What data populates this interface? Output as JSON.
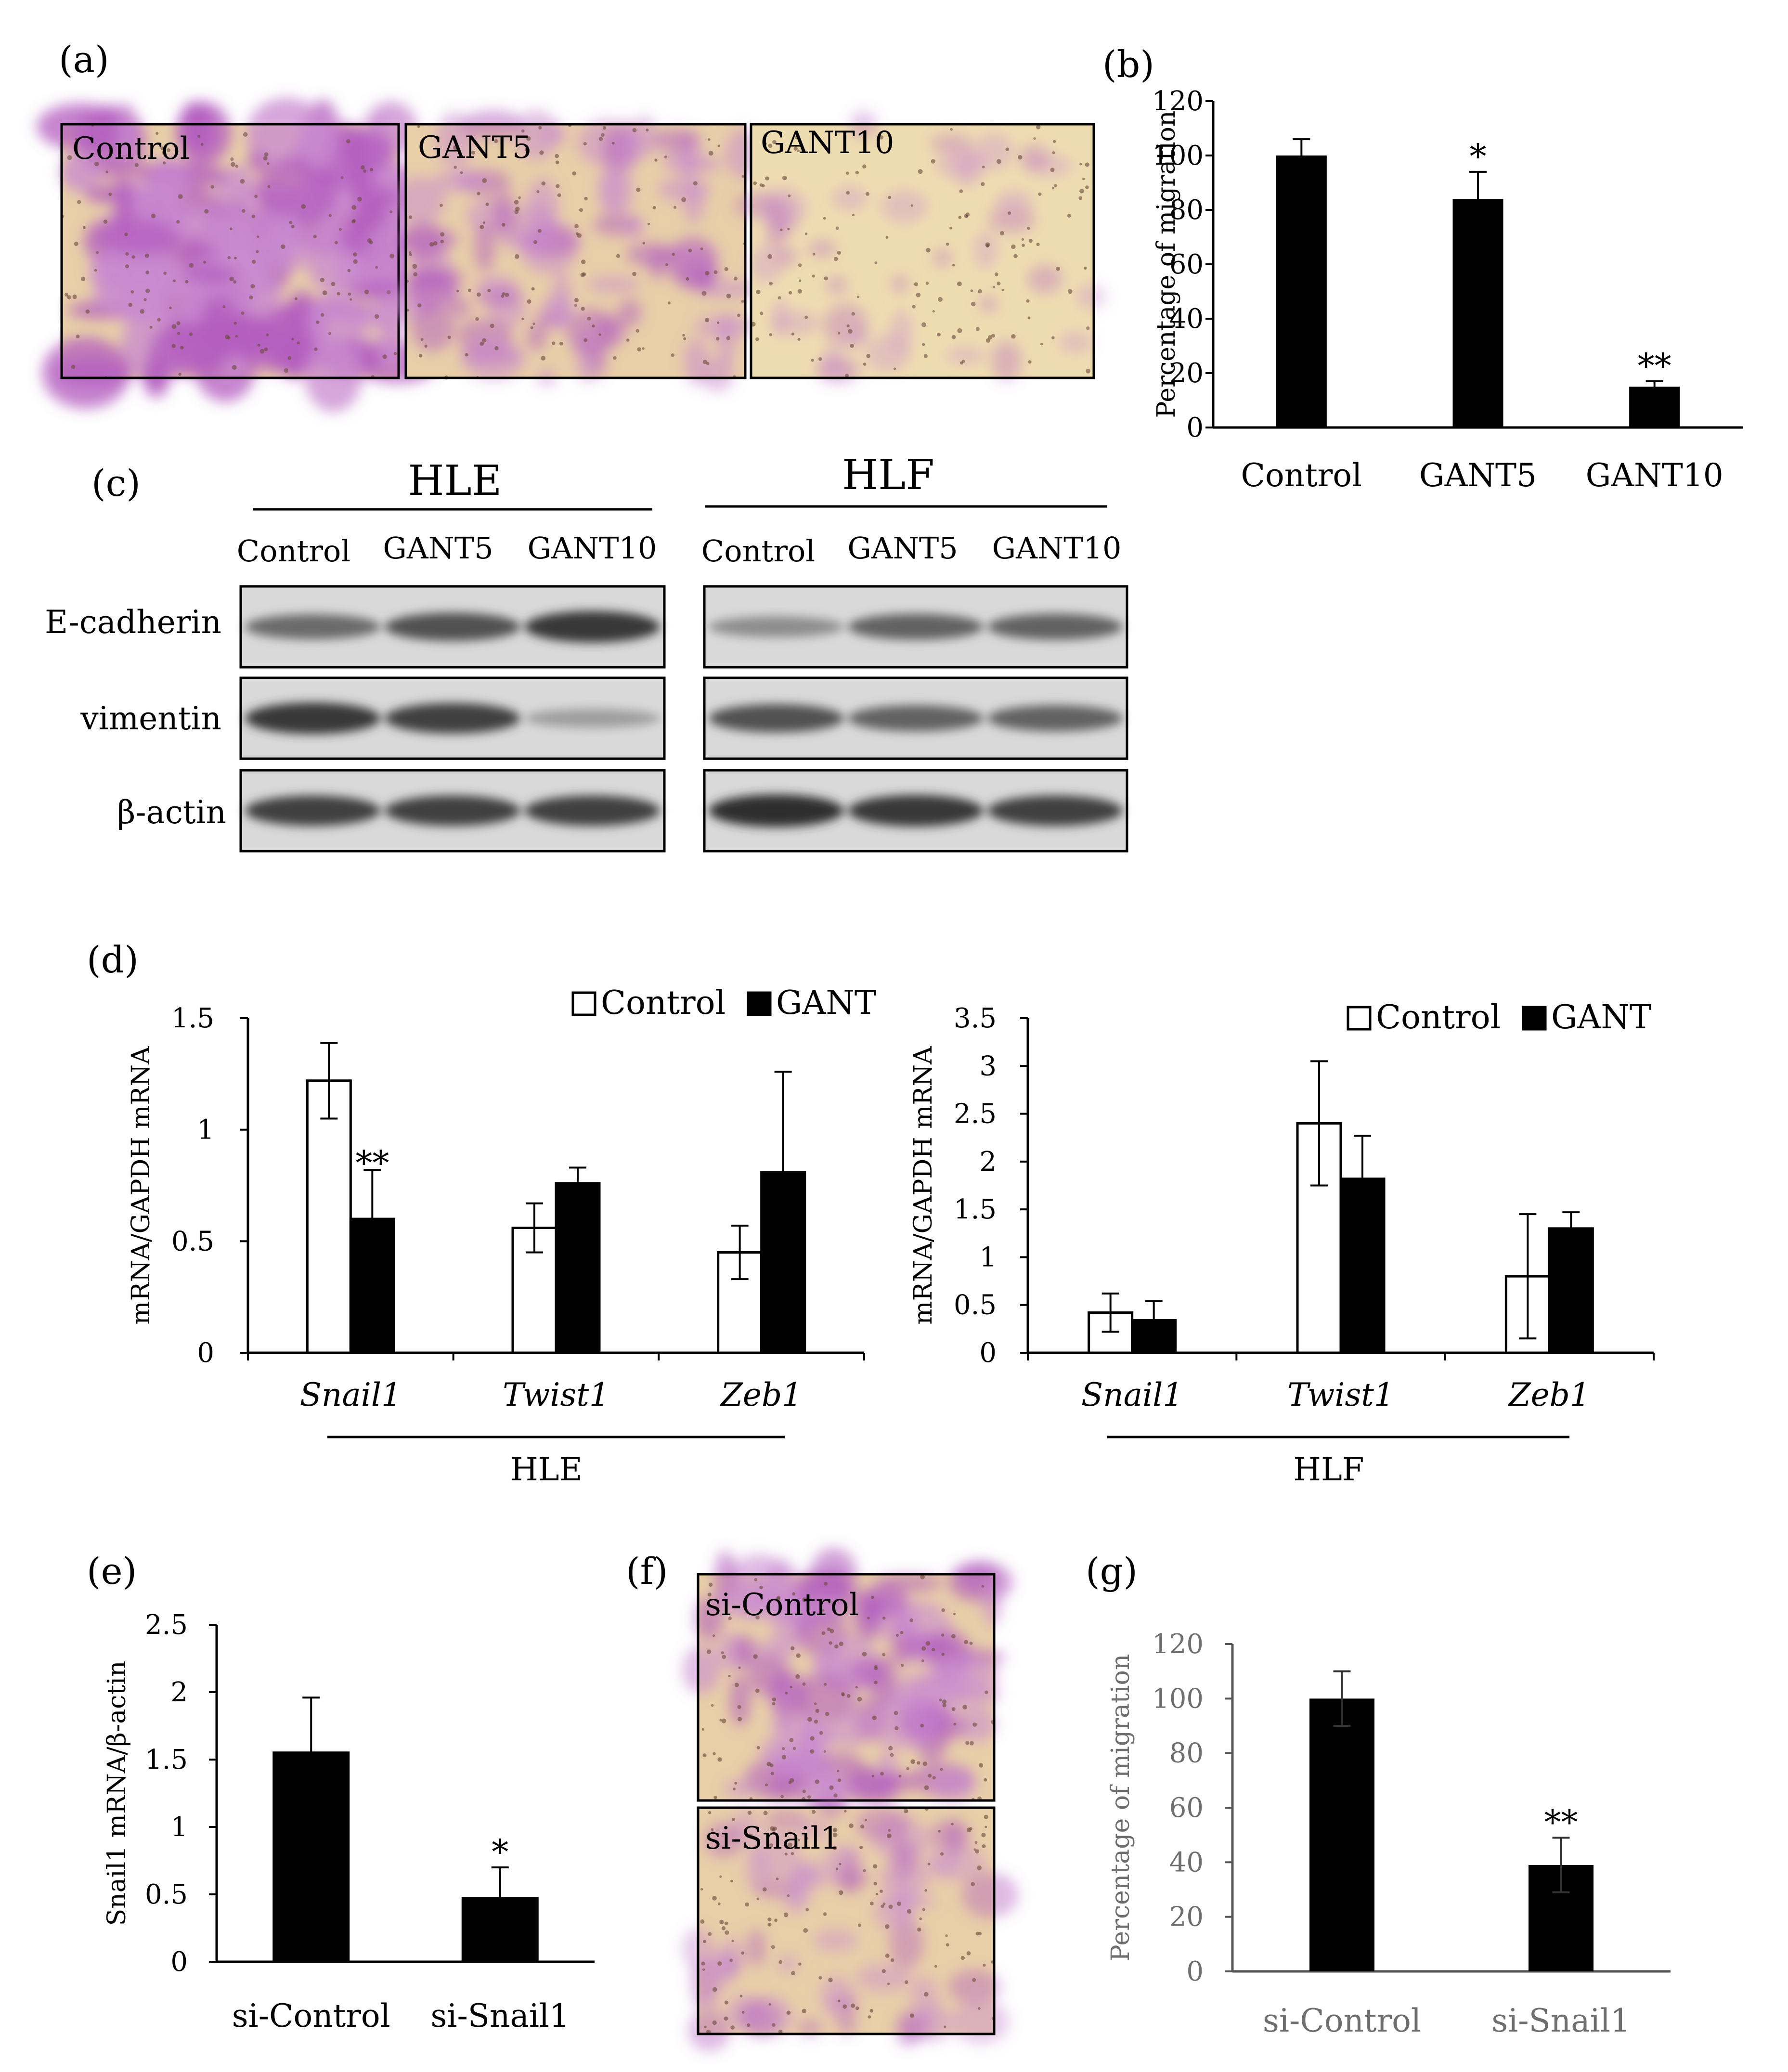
{
  "panel_labels": {
    "a": "(a)",
    "b": "(b)",
    "c": "(c)",
    "d": "(d)",
    "e": "(e)",
    "f": "(f)",
    "g": "(g)"
  },
  "micrographs": {
    "a": [
      {
        "label": "Control",
        "stain_density": 0.85
      },
      {
        "label": "GANT5",
        "stain_density": 0.45
      },
      {
        "label": "GANT10",
        "stain_density": 0.15
      }
    ],
    "f": [
      {
        "label": "si-Control",
        "stain_density": 0.55
      },
      {
        "label": "si-Snail1",
        "stain_density": 0.3
      }
    ]
  },
  "western_blot": {
    "groups": [
      "HLE",
      "HLF"
    ],
    "lanes": [
      "Control",
      "GANT5",
      "GANT10"
    ],
    "rows": [
      "E-cadherin",
      "vimentin",
      "β-actin"
    ],
    "intensity": {
      "HLE": [
        [
          0.55,
          0.7,
          0.85
        ],
        [
          0.85,
          0.8,
          0.25
        ],
        [
          0.8,
          0.8,
          0.8
        ]
      ],
      "HLF": [
        [
          0.35,
          0.6,
          0.6
        ],
        [
          0.7,
          0.6,
          0.6
        ],
        [
          0.9,
          0.85,
          0.8
        ]
      ]
    }
  },
  "chart_data": [
    {
      "id": "b",
      "type": "bar",
      "categories": [
        "Control",
        "GANT5",
        "GANT10"
      ],
      "values": [
        100,
        84,
        15
      ],
      "errors": [
        6,
        10,
        2
      ],
      "annotations": [
        "",
        "*",
        "**"
      ],
      "ylabel": "Percentage of migration",
      "ylim": [
        0,
        120
      ],
      "yticks": [
        "0",
        "20",
        "40",
        "60",
        "80",
        "100",
        "120"
      ],
      "grid": false,
      "bar_color": "#000000"
    },
    {
      "id": "d-HLE",
      "type": "bar",
      "categories": [
        "Snail1",
        "Twist1",
        "Zeb1"
      ],
      "group_label": "HLE",
      "series": [
        {
          "name": "Control",
          "values": [
            1.22,
            0.56,
            0.45
          ],
          "errors": [
            0.17,
            0.11,
            0.12
          ],
          "color": "#ffffff"
        },
        {
          "name": "GANT",
          "values": [
            0.6,
            0.76,
            0.81
          ],
          "errors": [
            0.22,
            0.07,
            0.45
          ],
          "color": "#000000"
        }
      ],
      "annotations": [
        {
          "category": "Snail1",
          "series": "GANT",
          "text": "**"
        }
      ],
      "ylabel": "mRNA/GAPDH mRNA",
      "ylim": [
        0,
        1.5
      ],
      "yticks": [
        "0",
        "0.5",
        "1",
        "1.5"
      ],
      "legend_position": "top-right",
      "grid": false
    },
    {
      "id": "d-HLF",
      "type": "bar",
      "categories": [
        "Snail1",
        "Twist1",
        "Zeb1"
      ],
      "group_label": "HLF",
      "series": [
        {
          "name": "Control",
          "values": [
            0.42,
            2.4,
            0.8
          ],
          "errors": [
            0.2,
            0.65,
            0.65
          ],
          "color": "#ffffff"
        },
        {
          "name": "GANT",
          "values": [
            0.34,
            1.82,
            1.3
          ],
          "errors": [
            0.2,
            0.45,
            0.17
          ],
          "color": "#000000"
        }
      ],
      "ylabel": "mRNA/GAPDH mRNA",
      "ylim": [
        0,
        3.5
      ],
      "yticks": [
        "0",
        "0.5",
        "1",
        "1.5",
        "2",
        "2.5",
        "3",
        "3.5"
      ],
      "legend_position": "top-right",
      "grid": false
    },
    {
      "id": "e",
      "type": "bar",
      "categories": [
        "si-Control",
        "si-Snail1"
      ],
      "values": [
        1.56,
        0.48
      ],
      "errors": [
        0.4,
        0.22
      ],
      "annotations": [
        "",
        "*"
      ],
      "ylabel": "Snail1 mRNA/β-actin",
      "ylim": [
        0,
        2.5
      ],
      "yticks": [
        "0",
        "0.5",
        "1",
        "1.5",
        "2",
        "2.5"
      ],
      "grid": false,
      "bar_color": "#000000"
    },
    {
      "id": "g",
      "type": "bar",
      "categories": [
        "si-Control",
        "si-Snail1"
      ],
      "values": [
        100,
        39
      ],
      "errors": [
        10,
        10
      ],
      "annotations": [
        "",
        "**"
      ],
      "ylabel": "Percentage of migration",
      "ylim": [
        0,
        120
      ],
      "yticks": [
        "0",
        "20",
        "40",
        "60",
        "80",
        "100",
        "120"
      ],
      "grid": false,
      "bar_color": "#000000",
      "text_color": "#6e6e6e"
    }
  ]
}
